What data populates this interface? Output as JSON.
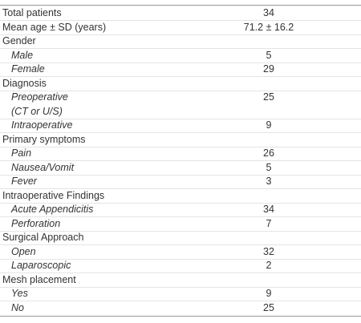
{
  "table": {
    "rows": [
      {
        "label": "Total patients",
        "value": "34"
      },
      {
        "label": "Mean age ± SD (years)",
        "value": "71.2 ± 16.2"
      },
      {
        "label": "Gender"
      },
      {
        "label": "Male",
        "value": "5",
        "sub": true
      },
      {
        "label": "Female",
        "value": "29",
        "sub": true
      },
      {
        "label": "Diagnosis"
      },
      {
        "label": "Preoperative",
        "label2": "(CT or U/S)",
        "value": "25",
        "sub": true
      },
      {
        "label": "Intraoperative",
        "value": "9",
        "sub": true
      },
      {
        "label": "Primary symptoms"
      },
      {
        "label": "Pain",
        "value": "26",
        "sub": true
      },
      {
        "label": "Nausea/Vomit",
        "value": "5",
        "sub": true
      },
      {
        "label": "Fever",
        "value": "3",
        "sub": true
      },
      {
        "label": "Intraoperative Findings"
      },
      {
        "label": "Acute Appendicitis",
        "value": "34",
        "sub": true
      },
      {
        "label": "Perforation",
        "value": "7",
        "sub": true
      },
      {
        "label": "Surgical Approach"
      },
      {
        "label": "Open",
        "value": "32",
        "sub": true
      },
      {
        "label": "Laparoscopic",
        "value": "2",
        "sub": true
      },
      {
        "label": "Mesh placement"
      },
      {
        "label": "Yes",
        "value": "9",
        "sub": true
      },
      {
        "label": "No",
        "value": "25",
        "sub": true
      }
    ]
  }
}
